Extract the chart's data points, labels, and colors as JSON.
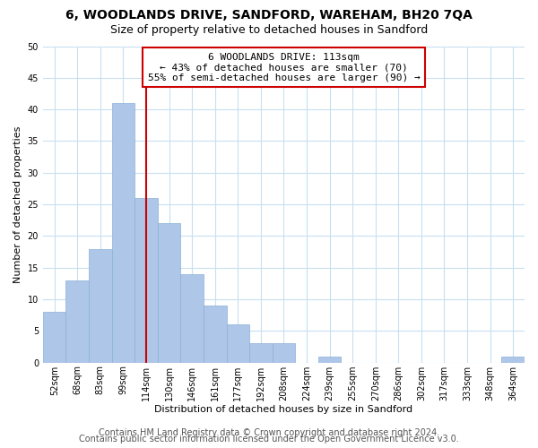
{
  "title": "6, WOODLANDS DRIVE, SANDFORD, WAREHAM, BH20 7QA",
  "subtitle": "Size of property relative to detached houses in Sandford",
  "xlabel": "Distribution of detached houses by size in Sandford",
  "ylabel": "Number of detached properties",
  "bar_labels": [
    "52sqm",
    "68sqm",
    "83sqm",
    "99sqm",
    "114sqm",
    "130sqm",
    "146sqm",
    "161sqm",
    "177sqm",
    "192sqm",
    "208sqm",
    "224sqm",
    "239sqm",
    "255sqm",
    "270sqm",
    "286sqm",
    "302sqm",
    "317sqm",
    "333sqm",
    "348sqm",
    "364sqm"
  ],
  "bar_values": [
    8,
    13,
    18,
    41,
    26,
    22,
    14,
    9,
    6,
    3,
    3,
    0,
    1,
    0,
    0,
    0,
    0,
    0,
    0,
    0,
    1
  ],
  "bar_color": "#aec6e8",
  "bar_edge_color": "#8ab0d8",
  "vline_x": 4.0,
  "vline_color": "#cc0000",
  "annotation_line1": "6 WOODLANDS DRIVE: 113sqm",
  "annotation_line2": "← 43% of detached houses are smaller (70)",
  "annotation_line3": "55% of semi-detached houses are larger (90) →",
  "annotation_box_color": "#ffffff",
  "annotation_box_edge_color": "#cc0000",
  "ylim": [
    0,
    50
  ],
  "yticks": [
    0,
    5,
    10,
    15,
    20,
    25,
    30,
    35,
    40,
    45,
    50
  ],
  "footer_line1": "Contains HM Land Registry data © Crown copyright and database right 2024.",
  "footer_line2": "Contains public sector information licensed under the Open Government Licence v3.0.",
  "background_color": "#ffffff",
  "grid_color": "#c8dff0",
  "title_fontsize": 10,
  "subtitle_fontsize": 9,
  "axis_label_fontsize": 8,
  "tick_fontsize": 7,
  "annotation_fontsize": 8,
  "footer_fontsize": 7
}
